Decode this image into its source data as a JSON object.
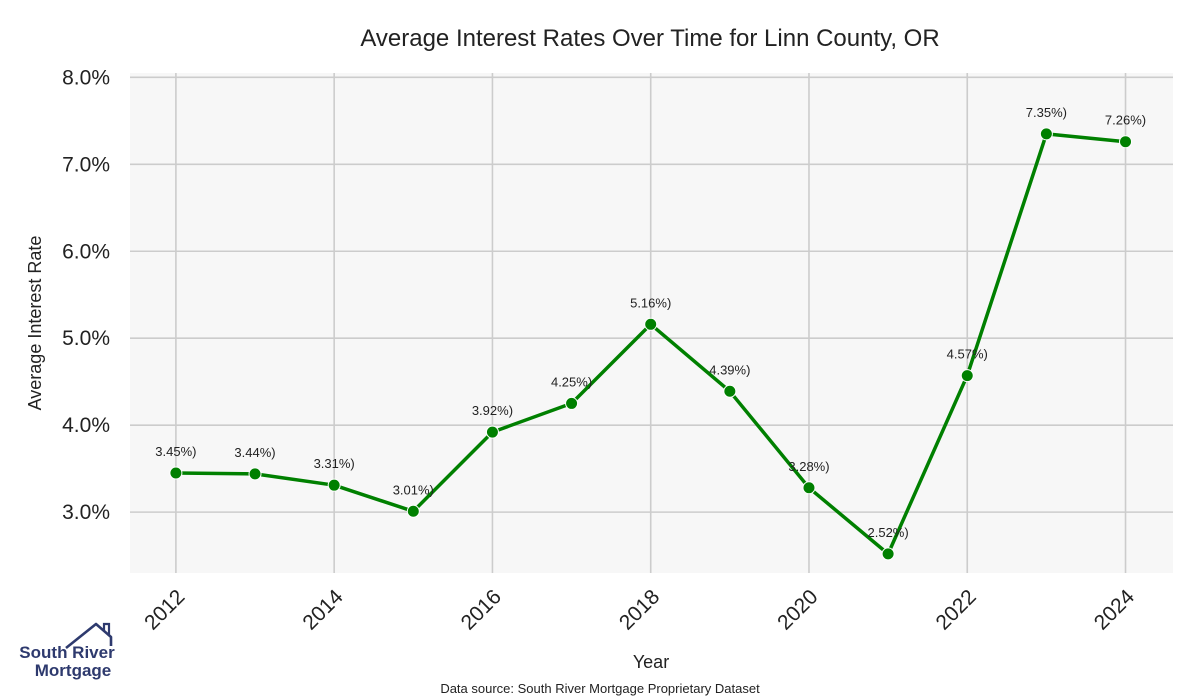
{
  "chart_data": {
    "type": "line",
    "title": "Average Interest Rates Over Time for Linn County, OR",
    "xlabel": "Year",
    "ylabel": "Average Interest Rate",
    "x": [
      2012,
      2013,
      2014,
      2015,
      2016,
      2017,
      2018,
      2019,
      2020,
      2021,
      2022,
      2023,
      2024
    ],
    "series": [
      {
        "values": [
          3.45,
          3.44,
          3.31,
          3.01,
          3.92,
          4.25,
          5.16,
          4.39,
          3.28,
          2.52,
          4.57,
          7.35,
          7.26
        ],
        "labels": [
          "3.45%)",
          "3.44%)",
          "3.31%)",
          "3.01%)",
          "3.92%)",
          "4.25%)",
          "5.16%)",
          "4.39%)",
          "3.28%)",
          "2.52%)",
          "4.57%)",
          "7.35%)",
          "7.26%)"
        ],
        "color": "#008000"
      }
    ],
    "x_ticks": [
      "2012",
      "2014",
      "2016",
      "2018",
      "2020",
      "2022",
      "2024"
    ],
    "x_tick_values": [
      2012,
      2014,
      2016,
      2018,
      2020,
      2022,
      2024
    ],
    "y_ticks": [
      "3.0%",
      "4.0%",
      "5.0%",
      "6.0%",
      "7.0%",
      "8.0%"
    ],
    "y_tick_values": [
      3.0,
      4.0,
      5.0,
      6.0,
      7.0,
      8.0
    ],
    "xlim": [
      2011.42,
      2024.6
    ],
    "ylim": [
      2.3,
      8.05
    ],
    "grid": true,
    "plot_background": "#f7f7f7",
    "grid_color": "#cccccc"
  },
  "footer": {
    "source": "Data source: South River Mortgage Proprietary Dataset"
  },
  "logo": {
    "line1": "South River",
    "line2": "Mortgage",
    "color": "#2e3a6e"
  }
}
